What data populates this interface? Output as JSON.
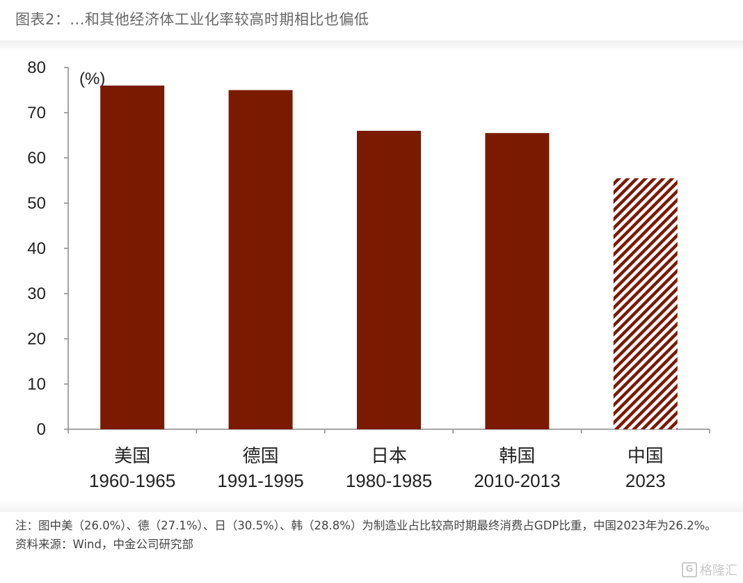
{
  "header": {
    "title": "图表2：...和其他经济体工业化率较高时期相比也偏低"
  },
  "chart_data": {
    "type": "bar",
    "title": "",
    "ylabel": "(%)",
    "xlabel": "",
    "ylim": [
      0,
      80
    ],
    "yticks": [
      0,
      10,
      20,
      30,
      40,
      50,
      60,
      70,
      80
    ],
    "grid": false,
    "categories": [
      {
        "name": "美国",
        "period": "1960-1965"
      },
      {
        "name": "德国",
        "period": "1991-1995"
      },
      {
        "name": "日本",
        "period": "1980-1985"
      },
      {
        "name": "韩国",
        "period": "2010-2013"
      },
      {
        "name": "中国",
        "period": "2023"
      }
    ],
    "values": [
      76,
      75,
      66,
      65.5,
      55.5
    ],
    "patterns": [
      "solid",
      "solid",
      "solid",
      "solid",
      "diagonal-hatch"
    ],
    "bar_color": "#7a1a00"
  },
  "notes": {
    "line1": "注：图中美（26.0%）、德（27.1%）、日（30.5%）、韩（28.8%）为制造业占比较高时期最终消费占GDP比重，中国2023年为26.2%。",
    "source": "资料来源：Wind，中金公司研究部"
  },
  "watermark": {
    "icon": "gelonghui-logo-icon",
    "icon_letter": "G",
    "text": "格隆汇"
  }
}
